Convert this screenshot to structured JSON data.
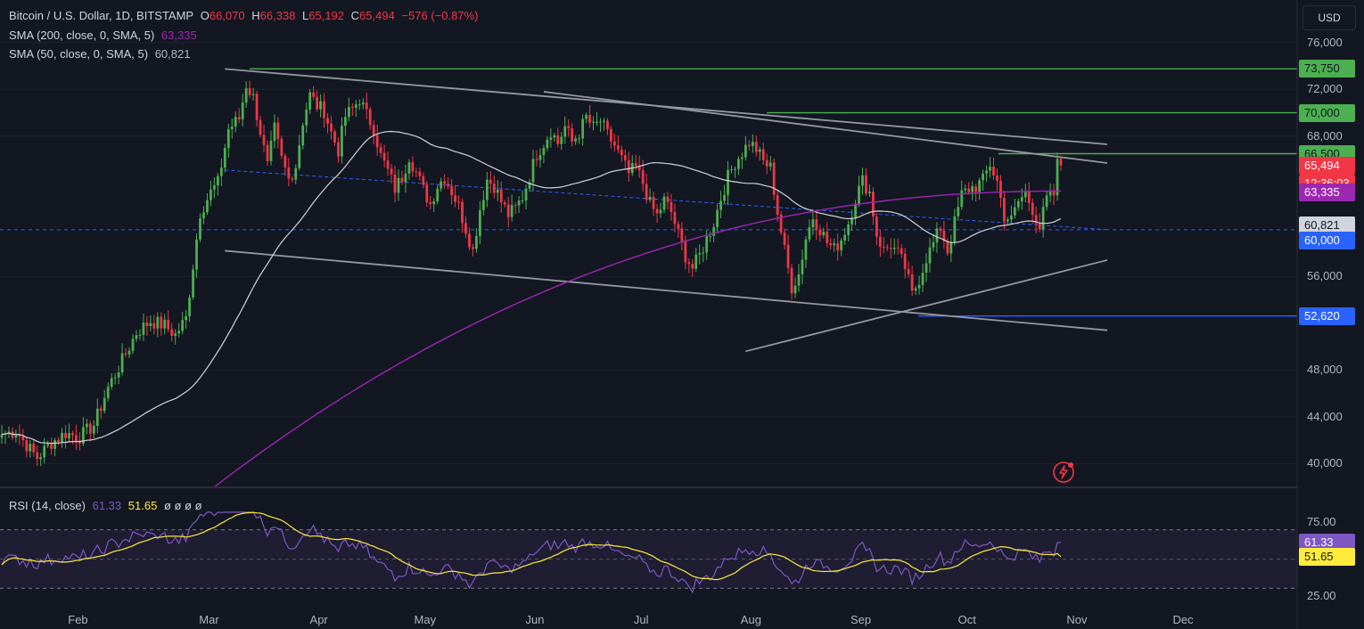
{
  "header": {
    "symbol": "Bitcoin / U.S. Dollar, 1D, BITSTAMP",
    "open_label": "O",
    "open": "66,070",
    "high_label": "H",
    "high": "66,338",
    "low_label": "L",
    "low": "65,192",
    "close_label": "C",
    "close": "65,494",
    "change": "−576 (−0.87%)"
  },
  "indicators": [
    {
      "label": "SMA (200, close, 0, SMA, 5)",
      "value": "63,335",
      "color": "#9c27b0"
    },
    {
      "label": "SMA (50, close, 0, SMA, 5)",
      "value": "60,821",
      "color": "#d1d4dc"
    }
  ],
  "rsi_legend": {
    "label": "RSI (14, close)",
    "rsi": "61.33",
    "ma": "51.65",
    "extras": "ø ø ø ø"
  },
  "currency": "USD",
  "price_tags": [
    {
      "text": "73,750",
      "bg": "#4caf50",
      "fg": "#131722"
    },
    {
      "text": "70,000",
      "bg": "#4caf50",
      "fg": "#131722"
    },
    {
      "text": "66,500",
      "bg": "#4caf50",
      "fg": "#131722"
    },
    {
      "text": "65,494",
      "bg": "#f23645",
      "fg": "#ffffff"
    },
    {
      "text": "12:36:03",
      "bg": "#f23645",
      "fg": "#ffffff"
    },
    {
      "text": "63,335",
      "bg": "#9c27b0",
      "fg": "#ffffff"
    },
    {
      "text": "60,821",
      "bg": "#d1d4dc",
      "fg": "#131722"
    },
    {
      "text": "60,000",
      "bg": "#2962ff",
      "fg": "#ffffff"
    },
    {
      "text": "52,620",
      "bg": "#2962ff",
      "fg": "#ffffff"
    },
    {
      "text": "61.33",
      "bg": "#7e57c2",
      "fg": "#ffffff"
    },
    {
      "text": "51.65",
      "bg": "#ffeb3b",
      "fg": "#131722"
    }
  ],
  "chart_data": {
    "type": "candlestick",
    "price_axis": {
      "ticks": [
        40000,
        44000,
        48000,
        56000,
        68000,
        72000,
        76000
      ],
      "labels": [
        "40,000",
        "44,000",
        "48,000",
        "56,000",
        "68,000",
        "72,000",
        "76,000"
      ],
      "range": [
        38500,
        78500
      ]
    },
    "rsi_axis": {
      "ticks": [
        25,
        75
      ],
      "labels": [
        "25.00",
        "75.00"
      ],
      "range": [
        18,
        85
      ],
      "band": [
        30,
        70
      ]
    },
    "time_axis": {
      "labels": [
        "Feb",
        "Mar",
        "Apr",
        "May",
        "Jun",
        "Jul",
        "Aug",
        "Sep",
        "Oct",
        "Nov",
        "Dec"
      ]
    },
    "colors": {
      "up": "#4caf50",
      "down": "#f23645",
      "sma200": "#9c27b0",
      "sma50": "#d1d4dc",
      "rsi": "#7e57c2",
      "rsi_ma": "#ffeb3b",
      "trend": "#9598a1",
      "support": "#2962ff",
      "resistance": "#4caf50"
    },
    "horizontal_levels": [
      {
        "price": 73750,
        "color": "#4caf50"
      },
      {
        "price": 70000,
        "color": "#4caf50"
      },
      {
        "price": 66500,
        "color": "#4caf50"
      },
      {
        "price": 52620,
        "color": "#2962ff"
      },
      {
        "price": 60000,
        "color": "#2962ff",
        "dashed": true
      }
    ],
    "close_anchors": [
      [
        0,
        42500
      ],
      [
        4,
        42800
      ],
      [
        8,
        41200
      ],
      [
        10,
        40500
      ],
      [
        14,
        41800
      ],
      [
        18,
        42600
      ],
      [
        22,
        42300
      ],
      [
        26,
        43300
      ],
      [
        30,
        46500
      ],
      [
        34,
        48800
      ],
      [
        38,
        51200
      ],
      [
        42,
        52200
      ],
      [
        46,
        51800
      ],
      [
        49,
        51000
      ],
      [
        52,
        52400
      ],
      [
        56,
        61500
      ],
      [
        59,
        63200
      ],
      [
        61,
        64000
      ],
      [
        64,
        68600
      ],
      [
        67,
        69500
      ],
      [
        69,
        72400
      ],
      [
        71,
        71300
      ],
      [
        73,
        68400
      ],
      [
        75,
        65400
      ],
      [
        77,
        68600
      ],
      [
        79,
        66000
      ],
      [
        81,
        64300
      ],
      [
        83,
        65500
      ],
      [
        85,
        69300
      ],
      [
        87,
        71500
      ],
      [
        89,
        70600
      ],
      [
        91,
        70200
      ],
      [
        93,
        68300
      ],
      [
        95,
        66800
      ],
      [
        97,
        69700
      ],
      [
        99,
        70300
      ],
      [
        101,
        71200
      ],
      [
        103,
        69800
      ],
      [
        105,
        68700
      ],
      [
        107,
        66300
      ],
      [
        109,
        65000
      ],
      [
        111,
        63500
      ],
      [
        113,
        64500
      ],
      [
        115,
        66300
      ],
      [
        117,
        64900
      ],
      [
        119,
        63400
      ],
      [
        121,
        62200
      ],
      [
        123,
        63800
      ],
      [
        125,
        64500
      ],
      [
        127,
        63300
      ],
      [
        129,
        62000
      ],
      [
        131,
        60100
      ],
      [
        133,
        58200
      ],
      [
        135,
        61800
      ],
      [
        137,
        64300
      ],
      [
        139,
        63800
      ],
      [
        141,
        62400
      ],
      [
        143,
        61300
      ],
      [
        145,
        61800
      ],
      [
        147,
        62800
      ],
      [
        149,
        64600
      ],
      [
        151,
        66500
      ],
      [
        153,
        67400
      ],
      [
        155,
        68500
      ],
      [
        157,
        67400
      ],
      [
        159,
        68800
      ],
      [
        161,
        67500
      ],
      [
        163,
        68300
      ],
      [
        165,
        69600
      ],
      [
        167,
        68700
      ],
      [
        169,
        69300
      ],
      [
        171,
        68100
      ],
      [
        173,
        67200
      ],
      [
        175,
        66000
      ],
      [
        177,
        64800
      ],
      [
        179,
        65300
      ],
      [
        181,
        64000
      ],
      [
        183,
        62200
      ],
      [
        185,
        61200
      ],
      [
        187,
        62500
      ],
      [
        189,
        61500
      ],
      [
        191,
        59600
      ],
      [
        193,
        57800
      ],
      [
        195,
        56700
      ],
      [
        197,
        57800
      ],
      [
        199,
        59200
      ],
      [
        201,
        60600
      ],
      [
        203,
        62700
      ],
      [
        205,
        64500
      ],
      [
        207,
        65800
      ],
      [
        209,
        66600
      ],
      [
        211,
        67500
      ],
      [
        213,
        66900
      ],
      [
        215,
        65800
      ],
      [
        217,
        65300
      ],
      [
        219,
        61500
      ],
      [
        221,
        58200
      ],
      [
        223,
        55100
      ],
      [
        225,
        56200
      ],
      [
        227,
        59300
      ],
      [
        229,
        61100
      ],
      [
        231,
        60100
      ],
      [
        233,
        58900
      ],
      [
        235,
        58300
      ],
      [
        237,
        59200
      ],
      [
        239,
        60600
      ],
      [
        241,
        62700
      ],
      [
        243,
        64200
      ],
      [
        245,
        63200
      ],
      [
        247,
        59600
      ],
      [
        249,
        58200
      ],
      [
        251,
        58700
      ],
      [
        253,
        57900
      ],
      [
        255,
        56800
      ],
      [
        257,
        54400
      ],
      [
        259,
        55800
      ],
      [
        261,
        57600
      ],
      [
        263,
        58800
      ],
      [
        265,
        60200
      ],
      [
        267,
        58200
      ],
      [
        269,
        60600
      ],
      [
        271,
        63000
      ],
      [
        273,
        63500
      ],
      [
        275,
        63700
      ],
      [
        277,
        64200
      ],
      [
        279,
        65600
      ],
      [
        281,
        64100
      ],
      [
        283,
        61200
      ],
      [
        285,
        60800
      ],
      [
        287,
        62400
      ],
      [
        289,
        63100
      ],
      [
        291,
        61800
      ],
      [
        293,
        60200
      ],
      [
        295,
        62600
      ],
      [
        297,
        63000
      ],
      [
        298,
        66070
      ],
      [
        299,
        65494
      ]
    ]
  }
}
